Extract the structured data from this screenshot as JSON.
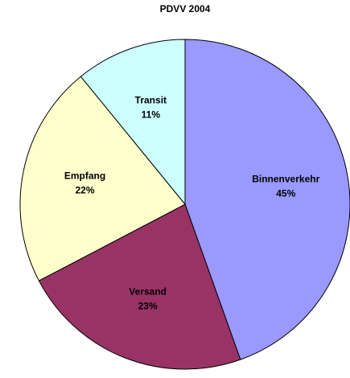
{
  "chart_data": {
    "type": "pie",
    "title": "PDVV 2004",
    "categories": [
      "Binnenverkehr",
      "Versand",
      "Empfang",
      "Transit"
    ],
    "values": [
      45,
      23,
      22,
      11
    ],
    "value_labels": [
      "45%",
      "23%",
      "22%",
      "11%"
    ],
    "colors": [
      "#9999ff",
      "#993366",
      "#ffffcc",
      "#ccffff"
    ]
  }
}
